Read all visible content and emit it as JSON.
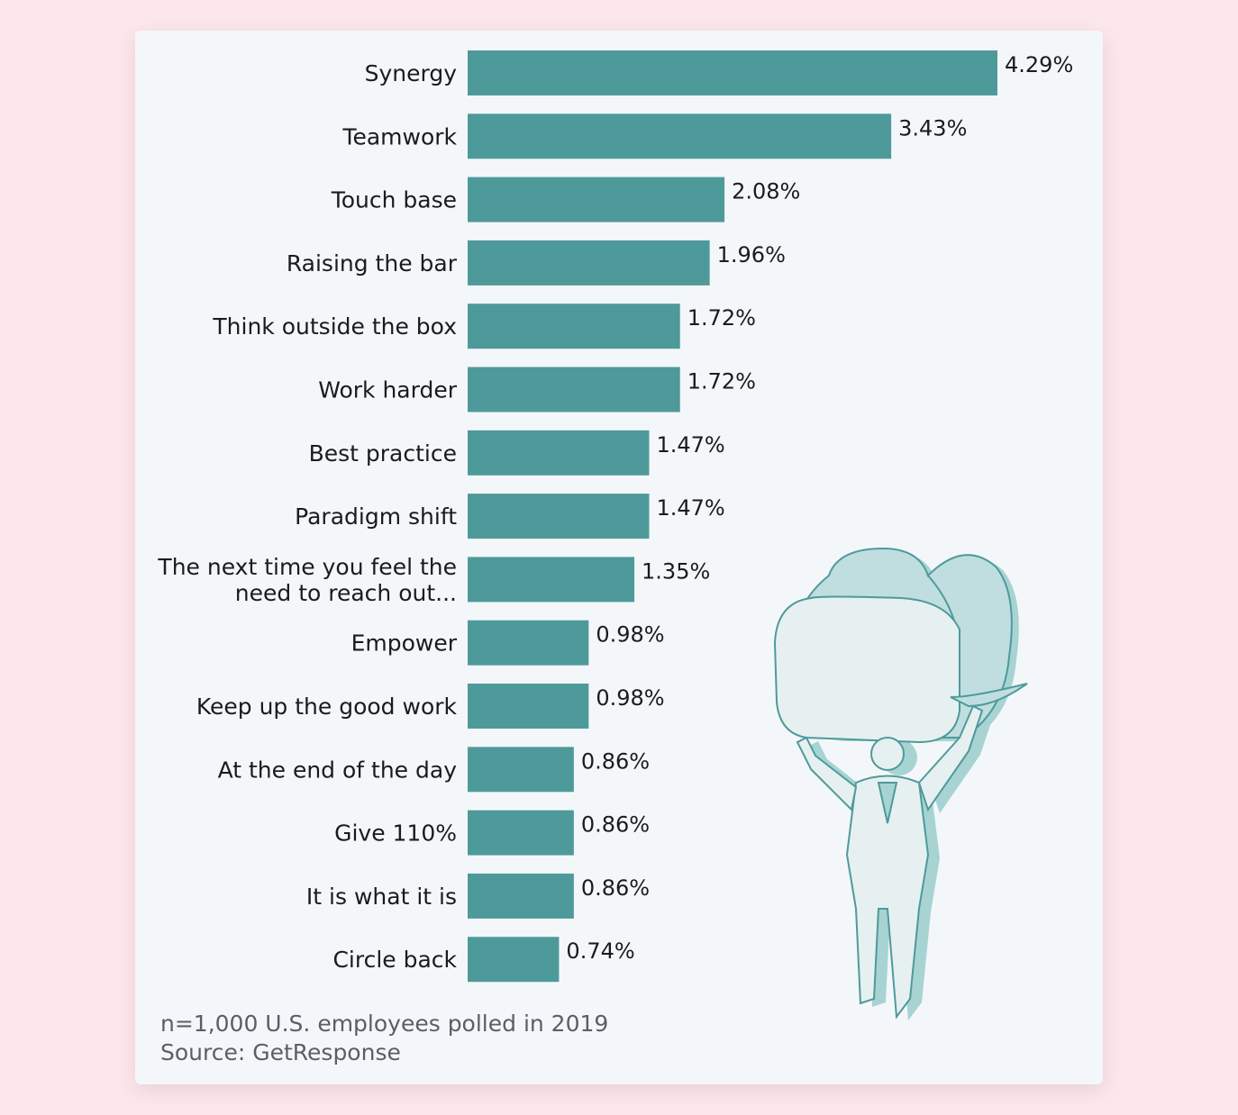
{
  "chart_data": {
    "type": "bar",
    "orientation": "horizontal",
    "categories": [
      [
        "Synergy"
      ],
      [
        "Teamwork"
      ],
      [
        "Touch base"
      ],
      [
        "Raising the bar"
      ],
      [
        "Think outside the box"
      ],
      [
        "Work harder"
      ],
      [
        "Best practice"
      ],
      [
        "Paradigm shift"
      ],
      [
        "The next time you feel the",
        "need to reach out..."
      ],
      [
        "Empower"
      ],
      [
        "Keep up the good work"
      ],
      [
        "At the end of the day"
      ],
      [
        "Give 110%"
      ],
      [
        "It is what it is"
      ],
      [
        "Circle back"
      ]
    ],
    "values": [
      4.29,
      3.43,
      2.08,
      1.96,
      1.72,
      1.72,
      1.47,
      1.47,
      1.35,
      0.98,
      0.98,
      0.86,
      0.86,
      0.86,
      0.74
    ],
    "value_labels": [
      "4.29%",
      "3.43%",
      "2.08%",
      "1.96%",
      "1.72%",
      "1.72%",
      "1.47%",
      "1.47%",
      "1.35%",
      "0.98%",
      "0.98%",
      "0.86%",
      "0.86%",
      "0.86%",
      "0.74%"
    ],
    "unit": "%",
    "xlim": [
      0,
      4.29
    ],
    "bar_color": "#4e9a9b",
    "grid": false,
    "legend": "none"
  },
  "notes": {
    "sample": "n=1,000 U.S. employees polled in 2019",
    "source": "Source: GetResponse"
  },
  "illustration": {
    "icon": "businessman-holding-speech-bubble-icon",
    "fill_color": "#a8d3d3",
    "line_color": "#4e9a9b"
  },
  "colors": {
    "page_background": "#fce8ec",
    "card_background": "#f4f7fa",
    "text": "#1b1b1b",
    "note_text": "#5a5e66"
  }
}
